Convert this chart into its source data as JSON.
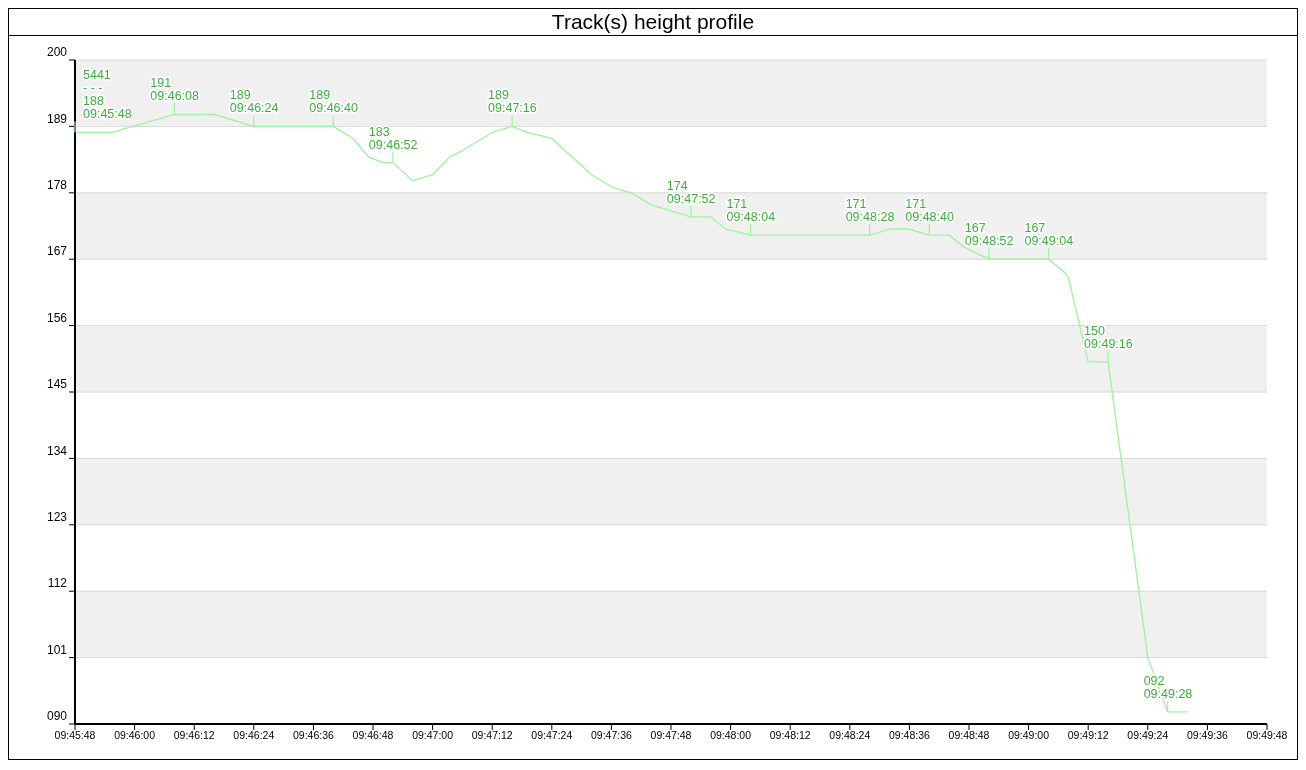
{
  "chart_data": {
    "type": "line",
    "title": "Track(s) height profile",
    "x": [
      9.763333,
      9.765417,
      9.768889,
      9.771111,
      9.773333,
      9.777778,
      9.778889,
      9.779722,
      9.780556,
      9.781111,
      9.782222,
      9.783333,
      9.784306,
      9.785,
      9.785556,
      9.786667,
      9.787778,
      9.788611,
      9.79,
      9.791111,
      9.792222,
      9.793333,
      9.794444,
      9.795556,
      9.796667,
      9.797778,
      9.798889,
      9.799722,
      9.801111,
      9.807778,
      9.808889,
      9.81,
      9.811111,
      9.812222,
      9.813056,
      9.814444,
      9.817778,
      9.818611,
      9.818889,
      9.82,
      9.821111,
      9.823333,
      9.824444,
      9.825556
    ],
    "series": [
      {
        "color": "#99f599",
        "values": [
          188,
          188,
          191,
          191,
          189,
          189,
          187,
          184,
          183,
          183,
          180,
          181,
          184,
          185,
          186,
          188,
          189,
          188,
          187,
          184,
          181,
          179,
          178,
          176,
          175,
          174,
          174,
          172,
          171,
          171,
          172,
          172,
          171,
          171,
          169,
          167,
          167,
          165,
          164,
          150,
          150,
          101,
          92,
          92
        ]
      }
    ],
    "xlim": [
      9.763333,
      9.83
    ],
    "xticks": [
      {
        "value": 9.763333,
        "label": "09:45:48"
      },
      {
        "value": 9.766667,
        "label": "09:46:00"
      },
      {
        "value": 9.77,
        "label": "09:46:12"
      },
      {
        "value": 9.773333,
        "label": "09:46:24"
      },
      {
        "value": 9.776667,
        "label": "09:46:36"
      },
      {
        "value": 9.78,
        "label": "09:46:48"
      },
      {
        "value": 9.783333,
        "label": "09:47:00"
      },
      {
        "value": 9.786667,
        "label": "09:47:12"
      },
      {
        "value": 9.79,
        "label": "09:47:24"
      },
      {
        "value": 9.793333,
        "label": "09:47:36"
      },
      {
        "value": 9.796667,
        "label": "09:47:48"
      },
      {
        "value": 9.8,
        "label": "09:48:00"
      },
      {
        "value": 9.803333,
        "label": "09:48:12"
      },
      {
        "value": 9.806667,
        "label": "09:48:24"
      },
      {
        "value": 9.81,
        "label": "09:48:36"
      },
      {
        "value": 9.813333,
        "label": "09:48:48"
      },
      {
        "value": 9.816667,
        "label": "09:49:00"
      },
      {
        "value": 9.82,
        "label": "09:49:12"
      },
      {
        "value": 9.823333,
        "label": "09:49:24"
      },
      {
        "value": 9.826667,
        "label": "09:49:36"
      },
      {
        "value": 9.83,
        "label": "09:49:48"
      }
    ],
    "ylim": [
      90,
      200
    ],
    "yticks": [
      {
        "value": 90,
        "label": "090"
      },
      101,
      112,
      123,
      134,
      145,
      156,
      167,
      178,
      189,
      200
    ],
    "grid": "y",
    "marker": "none",
    "line_style": "solid",
    "annotations": [
      {
        "text": "5441\n- - -\n188\n09:45:48",
        "x": 9.763333,
        "y": 188
      },
      {
        "text": "191\n09:46:08",
        "x": 9.768889,
        "y": 191
      },
      {
        "text": "189\n09:46:24",
        "x": 9.773333,
        "y": 189
      },
      {
        "text": "189\n09:46:40",
        "x": 9.777778,
        "y": 189
      },
      {
        "text": "183\n09:46:52",
        "x": 9.781111,
        "y": 183
      },
      {
        "text": "189\n09:47:16",
        "x": 9.787778,
        "y": 189
      },
      {
        "text": "174\n09:47:52",
        "x": 9.797778,
        "y": 174
      },
      {
        "text": "171\n09:48:04",
        "x": 9.801111,
        "y": 171
      },
      {
        "text": "171\n09:48:28",
        "x": 9.807778,
        "y": 171
      },
      {
        "text": "171\n09:48:40",
        "x": 9.811111,
        "y": 171
      },
      {
        "text": "167\n09:48:52",
        "x": 9.814444,
        "y": 167
      },
      {
        "text": "167\n09:49:04",
        "x": 9.817778,
        "y": 167
      },
      {
        "text": "150\n09:49:16",
        "x": 9.821111,
        "y": 150
      },
      {
        "text": "092\n09:49:28",
        "x": 9.824444,
        "y": 92
      }
    ]
  }
}
